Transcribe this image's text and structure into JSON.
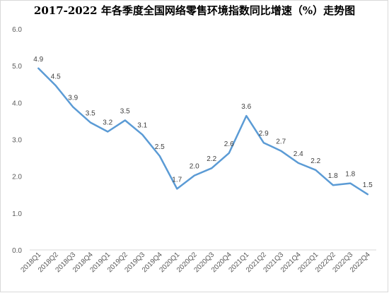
{
  "chart_data": {
    "type": "line",
    "title": "2017-2022 年各季度全国网络零售环境指数同比增速（%）走势图",
    "xlabel": "",
    "ylabel": "",
    "ylim": [
      0,
      6
    ],
    "yticks": [
      "0.0",
      "1.0",
      "2.0",
      "3.0",
      "4.0",
      "5.0",
      "6.0"
    ],
    "grid": false,
    "legend": "none",
    "line_color": "#5b9bd5",
    "categories": [
      "2018Q1",
      "2018Q2",
      "2018Q3",
      "2018Q4",
      "2019Q1",
      "2019Q2",
      "2019Q3",
      "2019Q4",
      "2020Q1",
      "2020Q2",
      "2020Q3",
      "2020Q4",
      "2021Q1",
      "2021Q2",
      "2021Q3",
      "2021Q4",
      "2022Q1",
      "2022Q2",
      "2022Q3",
      "2022Q4"
    ],
    "values": [
      4.93,
      4.46,
      3.88,
      3.46,
      3.21,
      3.52,
      3.13,
      2.55,
      1.66,
      2.02,
      2.22,
      2.63,
      3.64,
      2.91,
      2.69,
      2.36,
      2.17,
      1.76,
      1.81,
      1.51
    ],
    "data_labels": [
      "4.9",
      "4.5",
      "3.9",
      "3.5",
      "3.2",
      "3.5",
      "3.1",
      "2.5",
      "1.7",
      "2.0",
      "2.2",
      "2.6",
      "3.6",
      "2.9",
      "2.7",
      "2.4",
      "2.2",
      "1.8",
      "1.8",
      "1.5"
    ]
  }
}
